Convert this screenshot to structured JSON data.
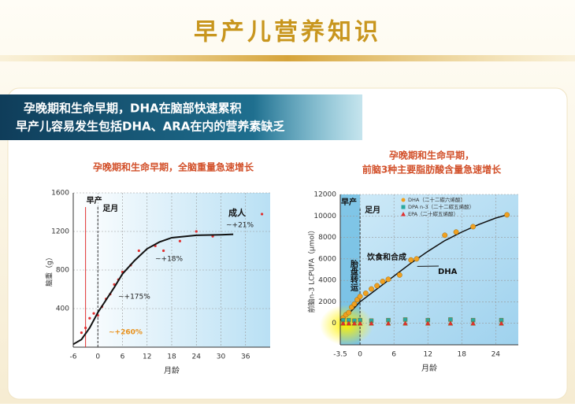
{
  "header": {
    "title": "早产儿营养知识"
  },
  "banner": {
    "lines": [
      "孕晚期和生命早期，DHA在脑部快速累积",
      "早产儿容易发生包括DHA、ARA在内的营养素缺乏"
    ]
  },
  "chart_data": [
    {
      "type": "line",
      "title": "孕晚期和生命早期，全脑重量急速增长",
      "y_label": "脑重（g）",
      "x_label": "月龄",
      "xlim": [
        -6,
        42
      ],
      "ylim": [
        0,
        1600
      ],
      "xticks": [
        -6,
        0,
        6,
        12,
        18,
        24,
        30,
        36
      ],
      "yticks": [
        400,
        800,
        1200,
        1600
      ],
      "grid": true,
      "color": "#111111",
      "x": [
        -6,
        -4,
        -2,
        0,
        2,
        4,
        6,
        9,
        12,
        15,
        18,
        24,
        30,
        33
      ],
      "values": [
        30,
        80,
        200,
        360,
        490,
        620,
        760,
        900,
        1020,
        1090,
        1135,
        1160,
        1165,
        1170
      ],
      "points": {
        "color": "#e03030",
        "x": [
          -4,
          -3,
          -2,
          -1,
          0,
          1,
          2,
          3,
          4,
          5,
          6,
          8,
          10,
          14,
          16,
          20,
          24,
          28,
          40
        ],
        "y": [
          150,
          200,
          300,
          350,
          330,
          420,
          500,
          550,
          650,
          700,
          780,
          850,
          1000,
          1050,
          1000,
          1100,
          1200,
          1150,
          1380
        ]
      },
      "markers": [
        {
          "label": "早产",
          "x": -3
        },
        {
          "label": "足月",
          "x": 0
        }
      ],
      "annotations": [
        "~+260%",
        "~+175%",
        "~+18%",
        "~+21%",
        "成人"
      ]
    },
    {
      "type": "scatter",
      "title": [
        "孕晚期和生命早期，",
        "前脑3种主要脂肪酸含量急速增长"
      ],
      "y_label": "前脑n-3 LCPUFA（μmol）",
      "x_label": "月龄",
      "xlim": [
        -3.5,
        28
      ],
      "ylim": [
        -2000,
        12000
      ],
      "xticks": [
        -3.5,
        0,
        6,
        12,
        18,
        24
      ],
      "yticks": [
        0,
        2000,
        4000,
        6000,
        8000,
        10000,
        12000
      ],
      "grid": true,
      "series": [
        {
          "name": "DHA（二十二碳六烯酸）",
          "color": "#f0a020",
          "marker": "circle",
          "x": [
            -3,
            -2.5,
            -2,
            -1.5,
            -1,
            -0.5,
            0,
            1,
            2,
            3,
            4,
            5,
            7,
            9,
            10,
            15,
            17,
            20,
            26
          ],
          "values": [
            500,
            800,
            1000,
            1500,
            1800,
            2200,
            2500,
            2800,
            3200,
            3500,
            3900,
            4100,
            4500,
            5900,
            6000,
            8200,
            8500,
            9000,
            10100
          ]
        },
        {
          "name": "DPA n-3（二十二碳五烯酸）",
          "color": "#2aa8a0",
          "marker": "square",
          "x": [
            -3,
            -2,
            -1,
            0,
            2,
            5,
            8,
            12,
            16,
            20,
            25
          ],
          "values": [
            300,
            300,
            250,
            300,
            250,
            300,
            350,
            300,
            350,
            300,
            300
          ]
        },
        {
          "name": "EPA（二十碳五烯酸）",
          "color": "#e03030",
          "marker": "triangle",
          "x": [
            -3,
            -2,
            -1,
            0,
            2,
            5,
            8,
            12,
            16,
            20,
            25
          ],
          "values": [
            0,
            0,
            0,
            0,
            0,
            0,
            0,
            0,
            0,
            0,
            0
          ]
        }
      ],
      "fit": {
        "label": "DHA",
        "color": "#111111",
        "x": [
          -3.5,
          -2,
          0,
          3,
          6,
          9,
          12,
          15,
          18,
          21,
          24,
          26
        ],
        "values": [
          300,
          900,
          2000,
          3200,
          4400,
          5600,
          6700,
          7700,
          8500,
          9200,
          9800,
          10100
        ]
      },
      "markers": [
        {
          "label": "早产",
          "x": -3.5
        },
        {
          "label": "足月",
          "x": 0
        }
      ],
      "annotations": [
        "饮食和合成",
        "胎盘转运"
      ]
    }
  ]
}
